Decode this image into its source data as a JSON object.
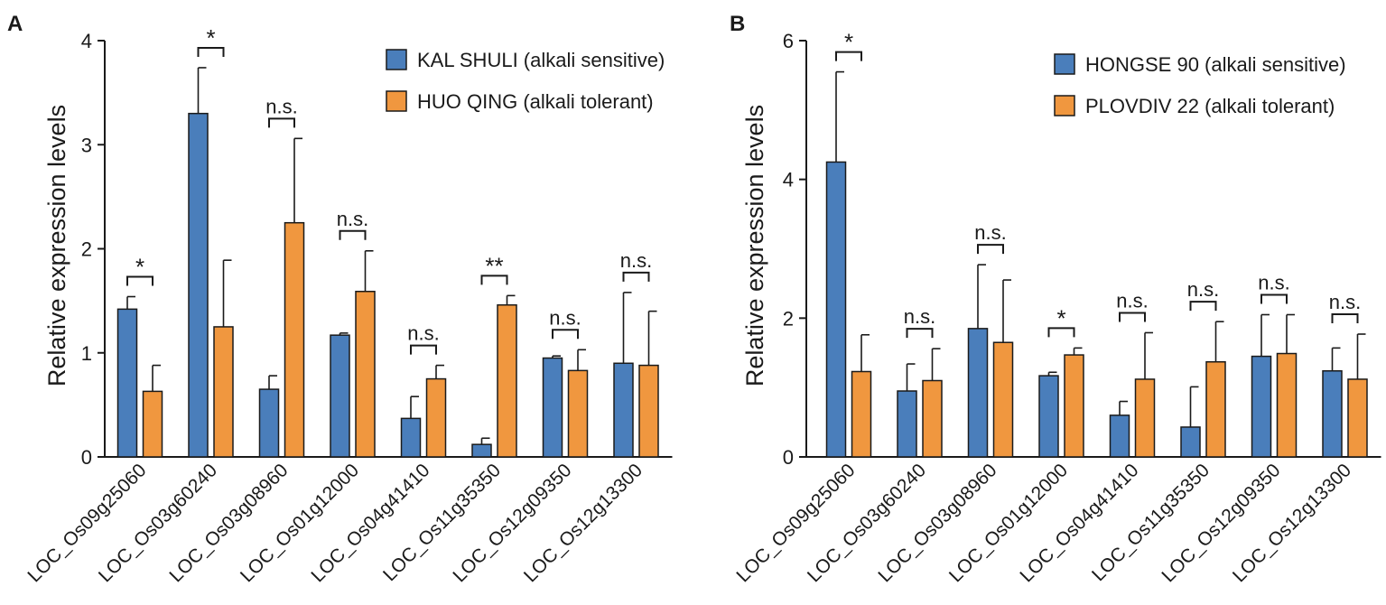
{
  "colors": {
    "sensitive": "#4a7ebb",
    "tolerant": "#f0973f",
    "axis": "#1a1a1a"
  },
  "chart_data": [
    {
      "panel": "A",
      "type": "bar",
      "ylabel": "Relative expression levels",
      "xlabel": "",
      "ylim": [
        0,
        4
      ],
      "yticks": [
        "0",
        "1",
        "2",
        "3",
        "4"
      ],
      "categories": [
        "LOC_Os09g25060",
        "LOC_Os03g60240",
        "LOC_Os03g08960",
        "LOC_Os01g12000",
        "LOC_Os04g41410",
        "LOC_Os11g35350",
        "LOC_Os12g09350",
        "LOC_Os12g13300"
      ],
      "series": [
        {
          "name": "KAL SHULI (alkali sensitive)",
          "color": "#4a7ebb",
          "values": [
            1.42,
            3.3,
            0.65,
            1.17,
            0.37,
            0.12,
            0.95,
            0.9
          ],
          "errors": [
            0.12,
            0.44,
            0.13,
            0.02,
            0.21,
            0.06,
            0.02,
            0.68
          ]
        },
        {
          "name": "HUO QING (alkali tolerant)",
          "color": "#f0973f",
          "values": [
            0.63,
            1.25,
            2.25,
            1.59,
            0.75,
            1.46,
            0.83,
            0.88
          ],
          "errors": [
            0.25,
            0.64,
            0.81,
            0.39,
            0.13,
            0.09,
            0.2,
            0.52
          ]
        }
      ],
      "significance": [
        "*",
        "*",
        "n.s.",
        "n.s.",
        "n.s.",
        "**",
        "n.s.",
        "n.s."
      ],
      "legend_position": "top-right"
    },
    {
      "panel": "B",
      "type": "bar",
      "ylabel": "Relative expression levels",
      "xlabel": "",
      "ylim": [
        0,
        6
      ],
      "yticks": [
        "0",
        "2",
        "4",
        "6"
      ],
      "categories": [
        "LOC_Os09g25060",
        "LOC_Os03g60240",
        "LOC_Os03g08960",
        "LOC_Os01g12000",
        "LOC_Os04g41410",
        "LOC_Os11g35350",
        "LOC_Os12g09350",
        "LOC_Os12g13300"
      ],
      "series": [
        {
          "name": "HONGSE 90 (alkali sensitive)",
          "color": "#4a7ebb",
          "values": [
            4.25,
            0.95,
            1.85,
            1.17,
            0.6,
            0.43,
            1.45,
            1.24
          ],
          "errors": [
            1.3,
            0.39,
            0.92,
            0.05,
            0.2,
            0.58,
            0.6,
            0.33
          ]
        },
        {
          "name": "PLOVDIV 22 (alkali tolerant)",
          "color": "#f0973f",
          "values": [
            1.23,
            1.1,
            1.65,
            1.47,
            1.12,
            1.37,
            1.49,
            1.12
          ],
          "errors": [
            0.53,
            0.46,
            0.9,
            0.1,
            0.67,
            0.58,
            0.56,
            0.65
          ]
        }
      ],
      "significance": [
        "*",
        "n.s.",
        "n.s.",
        "*",
        "n.s.",
        "n.s.",
        "n.s.",
        "n.s."
      ],
      "legend_position": "top-right"
    }
  ]
}
